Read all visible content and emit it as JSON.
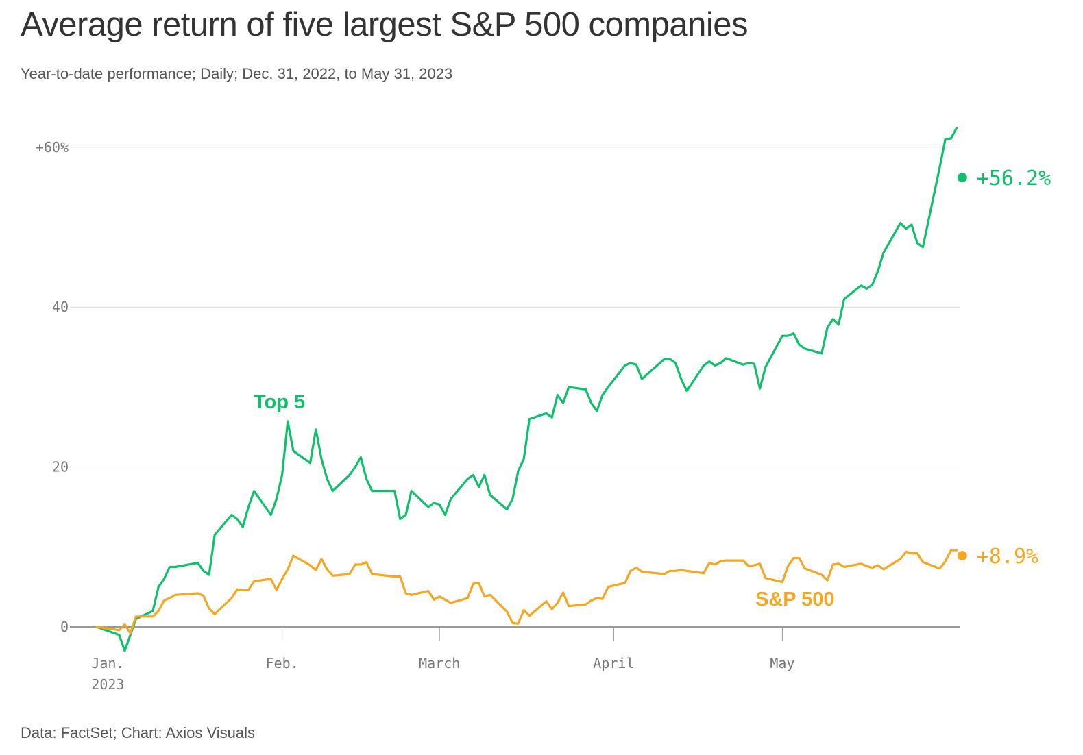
{
  "chart_data": {
    "type": "line",
    "title": "Average return of five largest S&P 500 companies",
    "subtitle": "Year-to-date performance; Daily; Dec. 31, 2022, to May 31, 2023",
    "source": "Data: FactSet; Chart: Axios Visuals",
    "y_ticks": [
      "+60%",
      "40",
      "20",
      "0"
    ],
    "y_tick_values": [
      60,
      40,
      20,
      0
    ],
    "ylim": [
      -3,
      62
    ],
    "x_tick_labels": [
      "Jan.",
      "Feb.",
      "March",
      "April",
      "May"
    ],
    "x_tick_dates": [
      "2023-01-01",
      "2023-02-01",
      "2023-03-01",
      "2023-04-01",
      "2023-05-01"
    ],
    "x_year_label": "2023",
    "grid": true,
    "series": [
      {
        "name": "Top 5",
        "color": "#0fbf6a",
        "end_label": "+56.2%",
        "points": [
          [
            "2022-12-30",
            0
          ],
          [
            "2023-01-03",
            -1
          ],
          [
            "2023-01-04",
            -3
          ],
          [
            "2023-01-05",
            -1
          ],
          [
            "2023-01-06",
            1
          ],
          [
            "2023-01-09",
            2
          ],
          [
            "2023-01-10",
            5
          ],
          [
            "2023-01-11",
            6
          ],
          [
            "2023-01-12",
            7.5
          ],
          [
            "2023-01-13",
            7.5
          ],
          [
            "2023-01-17",
            8
          ],
          [
            "2023-01-18",
            7
          ],
          [
            "2023-01-19",
            6.5
          ],
          [
            "2023-01-20",
            11.5
          ],
          [
            "2023-01-23",
            14
          ],
          [
            "2023-01-24",
            13.5
          ],
          [
            "2023-01-25",
            12.5
          ],
          [
            "2023-01-26",
            15
          ],
          [
            "2023-01-27",
            17
          ],
          [
            "2023-01-30",
            14
          ],
          [
            "2023-01-31",
            16
          ],
          [
            "2023-02-01",
            19
          ],
          [
            "2023-02-02",
            25.7
          ],
          [
            "2023-02-03",
            22
          ],
          [
            "2023-02-06",
            20.5
          ],
          [
            "2023-02-07",
            24.7
          ],
          [
            "2023-02-08",
            21
          ],
          [
            "2023-02-09",
            18.5
          ],
          [
            "2023-02-10",
            17
          ],
          [
            "2023-02-13",
            19
          ],
          [
            "2023-02-14",
            20
          ],
          [
            "2023-02-15",
            21.2
          ],
          [
            "2023-02-16",
            18.5
          ],
          [
            "2023-02-17",
            17
          ],
          [
            "2023-02-21",
            17
          ],
          [
            "2023-02-22",
            13.5
          ],
          [
            "2023-02-23",
            14
          ],
          [
            "2023-02-24",
            17
          ],
          [
            "2023-02-27",
            15
          ],
          [
            "2023-02-28",
            15.5
          ],
          [
            "2023-03-01",
            15.3
          ],
          [
            "2023-03-02",
            14
          ],
          [
            "2023-03-03",
            16
          ],
          [
            "2023-03-06",
            18.5
          ],
          [
            "2023-03-07",
            19
          ],
          [
            "2023-03-08",
            17.5
          ],
          [
            "2023-03-09",
            19
          ],
          [
            "2023-03-10",
            16.5
          ],
          [
            "2023-03-13",
            14.7
          ],
          [
            "2023-03-14",
            16
          ],
          [
            "2023-03-15",
            19.5
          ],
          [
            "2023-03-16",
            21
          ],
          [
            "2023-03-17",
            26
          ],
          [
            "2023-03-20",
            26.7
          ],
          [
            "2023-03-21",
            26.2
          ],
          [
            "2023-03-22",
            29
          ],
          [
            "2023-03-23",
            28
          ],
          [
            "2023-03-24",
            30
          ],
          [
            "2023-03-27",
            29.7
          ],
          [
            "2023-03-28",
            28
          ],
          [
            "2023-03-29",
            27
          ],
          [
            "2023-03-30",
            29
          ],
          [
            "2023-03-31",
            30
          ],
          [
            "2023-04-03",
            32.7
          ],
          [
            "2023-04-04",
            33
          ],
          [
            "2023-04-05",
            32.8
          ],
          [
            "2023-04-06",
            31
          ],
          [
            "2023-04-10",
            33.5
          ],
          [
            "2023-04-11",
            33.5
          ],
          [
            "2023-04-12",
            33
          ],
          [
            "2023-04-13",
            31
          ],
          [
            "2023-04-14",
            29.5
          ],
          [
            "2023-04-17",
            32.7
          ],
          [
            "2023-04-18",
            33.2
          ],
          [
            "2023-04-19",
            32.7
          ],
          [
            "2023-04-20",
            33
          ],
          [
            "2023-04-21",
            33.6
          ],
          [
            "2023-04-24",
            32.8
          ],
          [
            "2023-04-25",
            33
          ],
          [
            "2023-04-26",
            32.9
          ],
          [
            "2023-04-27",
            29.8
          ],
          [
            "2023-04-28",
            32.5
          ],
          [
            "2023-05-01",
            36.4
          ],
          [
            "2023-05-02",
            36.4
          ],
          [
            "2023-05-03",
            36.7
          ],
          [
            "2023-05-04",
            35.3
          ],
          [
            "2023-05-05",
            34.8
          ],
          [
            "2023-05-08",
            34.2
          ],
          [
            "2023-05-09",
            37.4
          ],
          [
            "2023-05-10",
            38.5
          ],
          [
            "2023-05-11",
            37.8
          ],
          [
            "2023-05-12",
            41
          ],
          [
            "2023-05-15",
            42.7
          ],
          [
            "2023-05-16",
            42.3
          ],
          [
            "2023-05-17",
            42.8
          ],
          [
            "2023-05-18",
            44.5
          ],
          [
            "2023-05-19",
            46.8
          ],
          [
            "2023-05-22",
            50.5
          ],
          [
            "2023-05-23",
            49.8
          ],
          [
            "2023-05-24",
            50.3
          ],
          [
            "2023-05-25",
            48
          ],
          [
            "2023-05-26",
            47.5
          ],
          [
            "2023-05-29",
            57.5
          ],
          [
            "2023-05-30",
            61
          ],
          [
            "2023-05-31",
            61.1
          ],
          [
            "2023-06-01",
            62.4
          ],
          [
            "2023-06-02",
            56.2
          ]
        ]
      },
      {
        "name": "S&P 500",
        "color": "#f5a623",
        "end_label": "+8.9%",
        "points": [
          [
            "2022-12-30",
            0
          ],
          [
            "2023-01-03",
            -0.4
          ],
          [
            "2023-01-04",
            0.3
          ],
          [
            "2023-01-05",
            -0.8
          ],
          [
            "2023-01-06",
            1.3
          ],
          [
            "2023-01-09",
            1.3
          ],
          [
            "2023-01-10",
            2
          ],
          [
            "2023-01-11",
            3.3
          ],
          [
            "2023-01-12",
            3.6
          ],
          [
            "2023-01-13",
            4
          ],
          [
            "2023-01-17",
            4.2
          ],
          [
            "2023-01-18",
            3.9
          ],
          [
            "2023-01-19",
            2.3
          ],
          [
            "2023-01-20",
            1.6
          ],
          [
            "2023-01-23",
            3.6
          ],
          [
            "2023-01-24",
            4.7
          ],
          [
            "2023-01-25",
            4.6
          ],
          [
            "2023-01-26",
            4.6
          ],
          [
            "2023-01-27",
            5.7
          ],
          [
            "2023-01-30",
            6
          ],
          [
            "2023-01-31",
            4.6
          ],
          [
            "2023-02-01",
            6
          ],
          [
            "2023-02-02",
            7.2
          ],
          [
            "2023-02-03",
            8.9
          ],
          [
            "2023-02-06",
            7.7
          ],
          [
            "2023-02-07",
            7.1
          ],
          [
            "2023-02-08",
            8.5
          ],
          [
            "2023-02-09",
            7.2
          ],
          [
            "2023-02-10",
            6.4
          ],
          [
            "2023-02-13",
            6.6
          ],
          [
            "2023-02-14",
            7.8
          ],
          [
            "2023-02-15",
            7.8
          ],
          [
            "2023-02-16",
            8.1
          ],
          [
            "2023-02-17",
            6.6
          ],
          [
            "2023-02-21",
            6.3
          ],
          [
            "2023-02-22",
            6.3
          ],
          [
            "2023-02-23",
            4.2
          ],
          [
            "2023-02-24",
            4
          ],
          [
            "2023-02-27",
            4.5
          ],
          [
            "2023-02-28",
            3.4
          ],
          [
            "2023-03-01",
            3.8
          ],
          [
            "2023-03-02",
            3.4
          ],
          [
            "2023-03-03",
            3
          ],
          [
            "2023-03-06",
            3.6
          ],
          [
            "2023-03-07",
            5.4
          ],
          [
            "2023-03-08",
            5.5
          ],
          [
            "2023-03-09",
            3.8
          ],
          [
            "2023-03-10",
            4
          ],
          [
            "2023-03-13",
            1.9
          ],
          [
            "2023-03-14",
            0.5
          ],
          [
            "2023-03-15",
            0.4
          ],
          [
            "2023-03-16",
            2.1
          ],
          [
            "2023-03-17",
            1.4
          ],
          [
            "2023-03-20",
            3.2
          ],
          [
            "2023-03-21",
            2.2
          ],
          [
            "2023-03-22",
            3
          ],
          [
            "2023-03-23",
            4.3
          ],
          [
            "2023-03-24",
            2.6
          ],
          [
            "2023-03-27",
            2.8
          ],
          [
            "2023-03-28",
            3.3
          ],
          [
            "2023-03-29",
            3.6
          ],
          [
            "2023-03-30",
            3.5
          ],
          [
            "2023-03-31",
            5
          ],
          [
            "2023-04-03",
            5.5
          ],
          [
            "2023-04-04",
            7
          ],
          [
            "2023-04-05",
            7.4
          ],
          [
            "2023-04-06",
            6.9
          ],
          [
            "2023-04-10",
            6.6
          ],
          [
            "2023-04-11",
            7
          ],
          [
            "2023-04-12",
            7
          ],
          [
            "2023-04-13",
            7.1
          ],
          [
            "2023-04-14",
            7
          ],
          [
            "2023-04-17",
            6.7
          ],
          [
            "2023-04-18",
            8
          ],
          [
            "2023-04-19",
            7.8
          ],
          [
            "2023-04-20",
            8.2
          ],
          [
            "2023-04-21",
            8.3
          ],
          [
            "2023-04-24",
            8.3
          ],
          [
            "2023-04-25",
            7.6
          ],
          [
            "2023-04-26",
            7.7
          ],
          [
            "2023-04-27",
            7.9
          ],
          [
            "2023-04-28",
            6.1
          ],
          [
            "2023-05-01",
            5.6
          ],
          [
            "2023-05-02",
            7.6
          ],
          [
            "2023-05-03",
            8.6
          ],
          [
            "2023-05-04",
            8.6
          ],
          [
            "2023-05-05",
            7.3
          ],
          [
            "2023-05-08",
            6.5
          ],
          [
            "2023-05-09",
            5.8
          ],
          [
            "2023-05-10",
            7.8
          ],
          [
            "2023-05-11",
            7.9
          ],
          [
            "2023-05-12",
            7.5
          ],
          [
            "2023-05-15",
            7.9
          ],
          [
            "2023-05-16",
            7.6
          ],
          [
            "2023-05-17",
            7.4
          ],
          [
            "2023-05-18",
            7.7
          ],
          [
            "2023-05-19",
            7.2
          ],
          [
            "2023-05-22",
            8.5
          ],
          [
            "2023-05-23",
            9.4
          ],
          [
            "2023-05-24",
            9.2
          ],
          [
            "2023-05-25",
            9.2
          ],
          [
            "2023-05-26",
            8.1
          ],
          [
            "2023-05-29",
            7.3
          ],
          [
            "2023-05-30",
            8.2
          ],
          [
            "2023-05-31",
            9.6
          ],
          [
            "2023-06-01",
            9.6
          ],
          [
            "2023-06-02",
            8.9
          ]
        ]
      }
    ]
  }
}
